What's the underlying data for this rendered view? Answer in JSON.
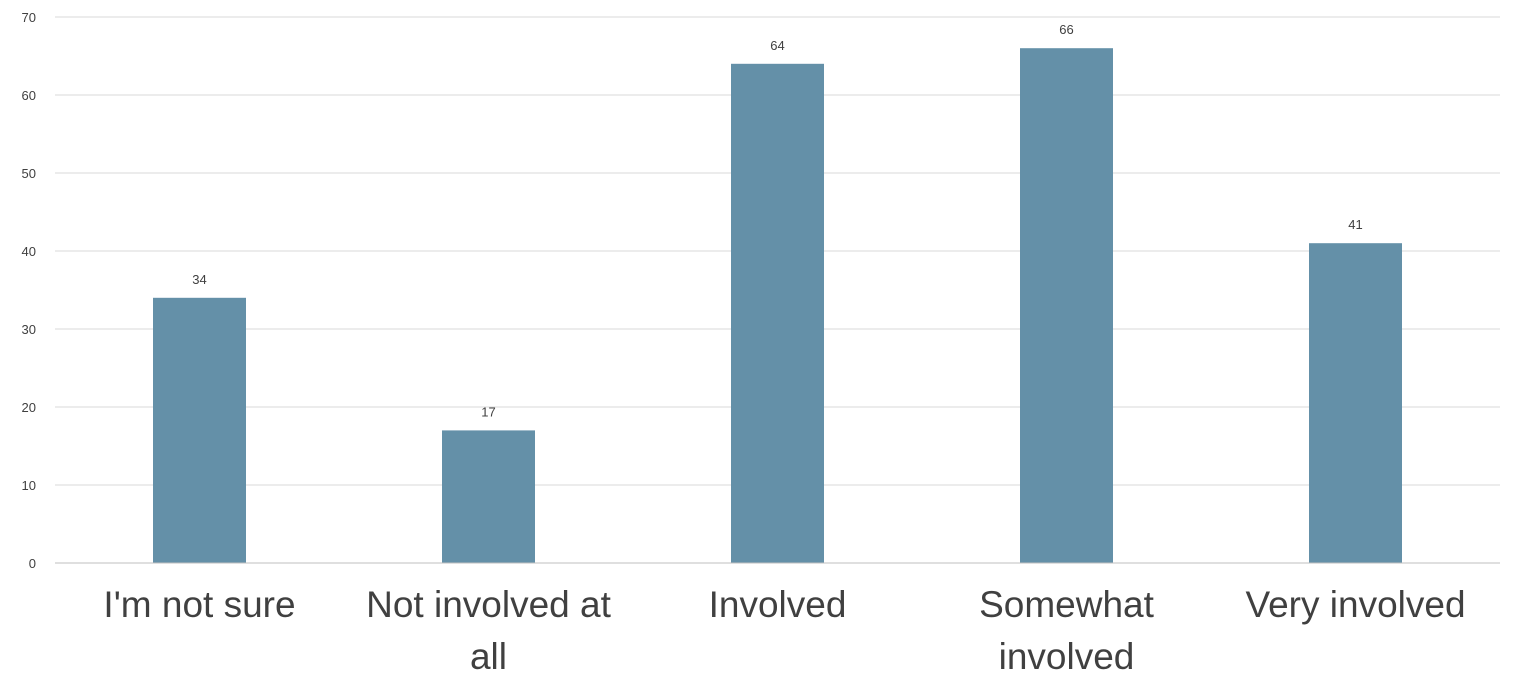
{
  "chart_data": {
    "type": "bar",
    "categories": [
      "I'm not sure",
      "Not involved at all",
      "Involved",
      "Somewhat involved",
      "Very involved"
    ],
    "category_label_lines": [
      [
        "I'm not sure"
      ],
      [
        "Not involved at",
        "all"
      ],
      [
        "Involved"
      ],
      [
        "Somewhat",
        "involved"
      ],
      [
        "Very involved"
      ]
    ],
    "values": [
      34,
      17,
      64,
      66,
      41
    ],
    "data_labels": [
      "34",
      "17",
      "64",
      "66",
      "41"
    ],
    "ylim": [
      0,
      70
    ],
    "yticks": [
      0,
      10,
      20,
      30,
      40,
      50,
      60,
      70
    ],
    "title": "",
    "xlabel": "",
    "ylabel": "",
    "grid": true,
    "legend": "none",
    "bar_color": "#6490a8"
  }
}
